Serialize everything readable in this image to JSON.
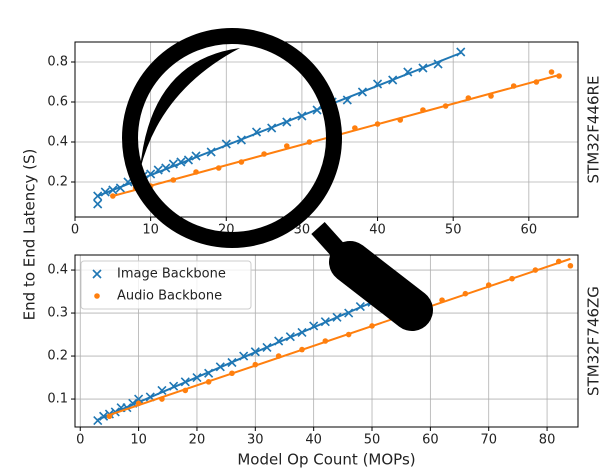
{
  "chart_data": [
    {
      "type": "scatter",
      "ylabel": "End to End Latency (S)",
      "side_label": "STM32F446RE",
      "xlim": [
        0,
        66.5
      ],
      "ylim": [
        0.025,
        0.9
      ],
      "xticks": [
        0,
        10,
        20,
        30,
        40,
        50,
        60
      ],
      "yticks": [
        0.2,
        0.4,
        0.6,
        0.8
      ],
      "grid": true,
      "series": [
        {
          "name": "Image Backbone",
          "color": "#1f77b4",
          "marker": "x",
          "x": [
            3,
            3,
            4,
            5,
            6,
            7,
            8,
            9,
            10,
            11,
            12,
            13,
            14,
            15,
            16,
            18,
            20,
            22,
            24,
            26,
            28,
            30,
            32,
            34,
            36,
            38,
            40,
            42,
            44,
            46,
            48,
            51
          ],
          "values": [
            0.13,
            0.09,
            0.15,
            0.16,
            0.17,
            0.2,
            0.21,
            0.23,
            0.24,
            0.26,
            0.27,
            0.29,
            0.3,
            0.31,
            0.33,
            0.35,
            0.39,
            0.41,
            0.45,
            0.47,
            0.5,
            0.53,
            0.56,
            0.6,
            0.61,
            0.65,
            0.69,
            0.71,
            0.75,
            0.77,
            0.79,
            0.85
          ],
          "fit": {
            "x": [
              3,
              51
            ],
            "y": [
              0.13,
              0.845
            ]
          }
        },
        {
          "name": "Audio Backbone",
          "color": "#ff7f0e",
          "marker": "o",
          "x": [
            5,
            8,
            10,
            13,
            16,
            19,
            22,
            25,
            28,
            31,
            34,
            37,
            40,
            43,
            46,
            49,
            52,
            55,
            58,
            61,
            63,
            64
          ],
          "values": [
            0.13,
            0.17,
            0.18,
            0.21,
            0.25,
            0.27,
            0.3,
            0.34,
            0.38,
            0.4,
            0.43,
            0.47,
            0.49,
            0.51,
            0.56,
            0.58,
            0.62,
            0.63,
            0.68,
            0.7,
            0.75,
            0.73
          ],
          "fit": {
            "x": [
              5,
              64
            ],
            "y": [
              0.13,
              0.735
            ]
          }
        }
      ]
    },
    {
      "type": "scatter",
      "xlabel": "Model Op Count (MOPs)",
      "side_label": "STM32F746ZG",
      "legend": "upper left",
      "xlim": [
        -0.9,
        85.3
      ],
      "ylim": [
        0.035,
        0.435
      ],
      "xticks": [
        0,
        10,
        20,
        30,
        40,
        50,
        60,
        70,
        80
      ],
      "yticks": [
        0.1,
        0.2,
        0.3,
        0.4
      ],
      "grid": true,
      "series": [
        {
          "name": "Image Backbone",
          "color": "#1f77b4",
          "marker": "x",
          "x": [
            3,
            4,
            5,
            6,
            7,
            8,
            9,
            10,
            12,
            14,
            16,
            18,
            20,
            22,
            24,
            26,
            28,
            30,
            32,
            34,
            36,
            38,
            40,
            42,
            44,
            46,
            48,
            50,
            52,
            55
          ],
          "values": [
            0.05,
            0.06,
            0.065,
            0.07,
            0.08,
            0.08,
            0.09,
            0.1,
            0.105,
            0.12,
            0.13,
            0.14,
            0.15,
            0.16,
            0.175,
            0.185,
            0.2,
            0.21,
            0.22,
            0.235,
            0.245,
            0.255,
            0.27,
            0.28,
            0.29,
            0.3,
            0.315,
            0.325,
            0.335,
            0.35
          ],
          "fit": {
            "x": [
              3,
              55
            ],
            "y": [
              0.052,
              0.354
            ]
          }
        },
        {
          "name": "Audio Backbone",
          "color": "#ff7f0e",
          "marker": "o",
          "x": [
            5,
            10,
            14,
            18,
            22,
            26,
            30,
            34,
            38,
            42,
            46,
            50,
            54,
            58,
            62,
            66,
            70,
            74,
            78,
            82,
            84
          ],
          "values": [
            0.06,
            0.09,
            0.1,
            0.12,
            0.14,
            0.16,
            0.18,
            0.2,
            0.215,
            0.235,
            0.25,
            0.27,
            0.29,
            0.31,
            0.33,
            0.345,
            0.365,
            0.38,
            0.4,
            0.42,
            0.41
          ],
          "fit": {
            "x": [
              5,
              84
            ],
            "y": [
              0.063,
              0.426
            ]
          }
        }
      ]
    }
  ]
}
